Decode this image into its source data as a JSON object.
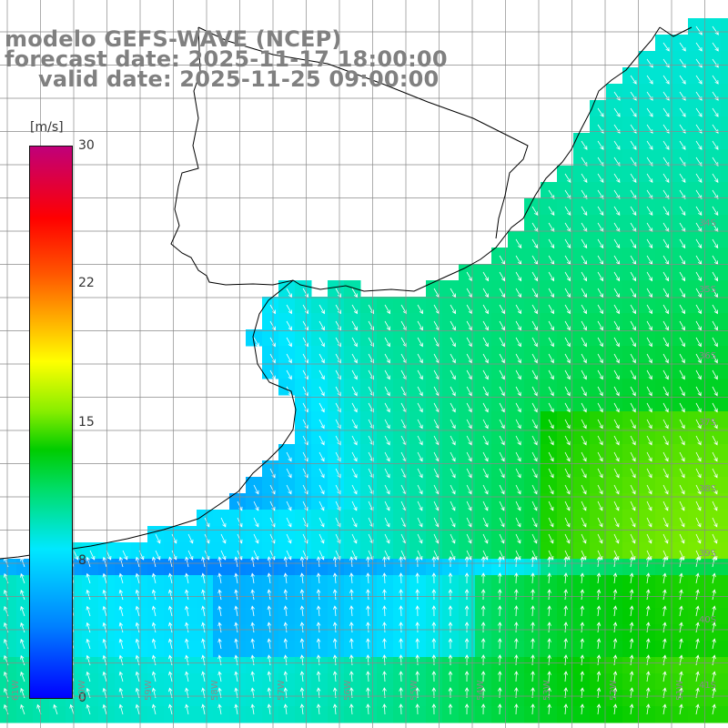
{
  "title": {
    "line1": "modelo GEFS-WAVE (NCEP)",
    "line2": "forecast date: 2025-11-17 18:00:00",
    "line3": "valid date: 2025-11-25 09:00:00"
  },
  "colorbar": {
    "unit": "[m/s]",
    "min": 0,
    "max": 30,
    "ticks": [
      "30",
      "22",
      "15",
      "8",
      "0"
    ],
    "tick_values": [
      30,
      22,
      15,
      8,
      0
    ],
    "colors": [
      "#0000ff",
      "#0080ff",
      "#00e8ff",
      "#00dd66",
      "#00cc00",
      "#88ee00",
      "#ffff00",
      "#ffaa00",
      "#ff5500",
      "#ff0000",
      "#c0007a"
    ]
  },
  "latitude_labels": [
    "34S",
    "35S",
    "36S",
    "37S",
    "38S",
    "39S",
    "40S",
    "41S"
  ],
  "longitude_labels": [
    "61W",
    "60W",
    "59W",
    "58W",
    "57W",
    "56W",
    "55W",
    "54W",
    "53W",
    "52W",
    "51W"
  ],
  "field": {
    "variable": "wind speed and direction",
    "speed_range_shown_m_s": [
      5,
      13
    ],
    "land_color": "#ffffff",
    "coastline_color": "#000000",
    "grid_color": "#888888",
    "arrow_color": "#ffffff"
  }
}
